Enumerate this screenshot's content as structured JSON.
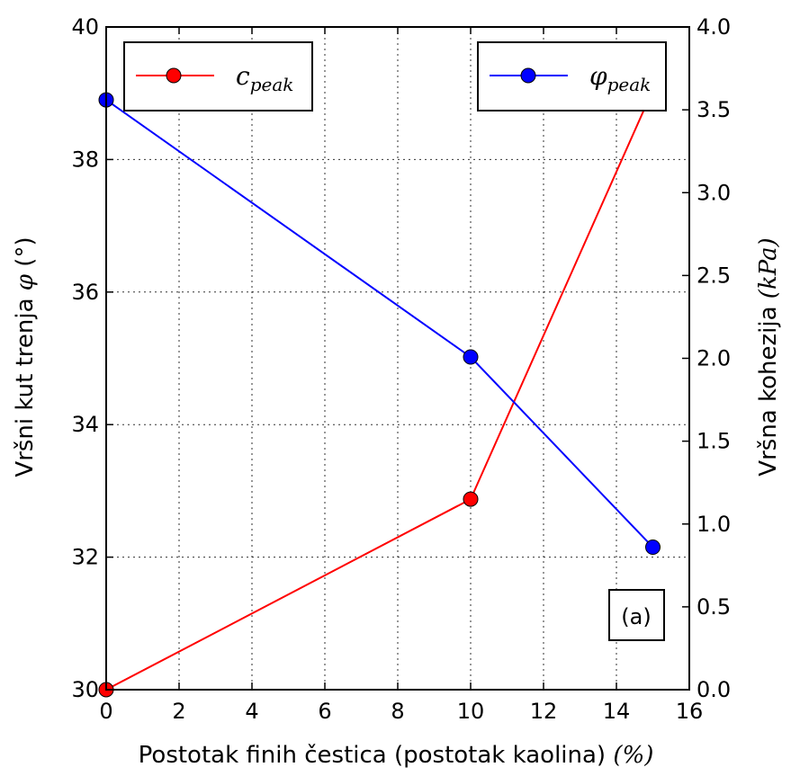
{
  "chart_data": {
    "type": "line",
    "x": [
      0,
      10,
      15
    ],
    "xlabel": "Postotak finih čestica (postotak kaolina)",
    "xlabel_unit": "(%)",
    "xlim": [
      0,
      16
    ],
    "xticks": [
      0,
      2,
      4,
      6,
      8,
      10,
      12,
      14,
      16
    ],
    "ylabel_left": "Vršni kut trenja",
    "ylabel_left_symbol": "φ",
    "ylabel_left_unit": "(°)",
    "ylim_left": [
      30,
      40
    ],
    "yticks_left": [
      30,
      32,
      34,
      36,
      38,
      40
    ],
    "ylabel_right": "Vršna kohezija",
    "ylabel_right_unit": "(kPa)",
    "ylim_right": [
      0.0,
      4.0
    ],
    "yticks_right": [
      "0.0",
      "0.5",
      "1.0",
      "1.5",
      "2.0",
      "2.5",
      "3.0",
      "3.5",
      "4.0"
    ],
    "grid": true,
    "series": [
      {
        "name": "c",
        "name_subscript": "peak",
        "axis": "right",
        "color": "#ff0000",
        "marker": "circle",
        "values": [
          0.0,
          1.15,
          3.62
        ],
        "legend_position": "top-left"
      },
      {
        "name": "φ",
        "name_subscript": "peak",
        "axis": "left",
        "color": "#0000ff",
        "marker": "circle",
        "values": [
          38.9,
          35.02,
          32.15
        ],
        "legend_position": "top-right"
      }
    ],
    "annotation": "(a)"
  }
}
